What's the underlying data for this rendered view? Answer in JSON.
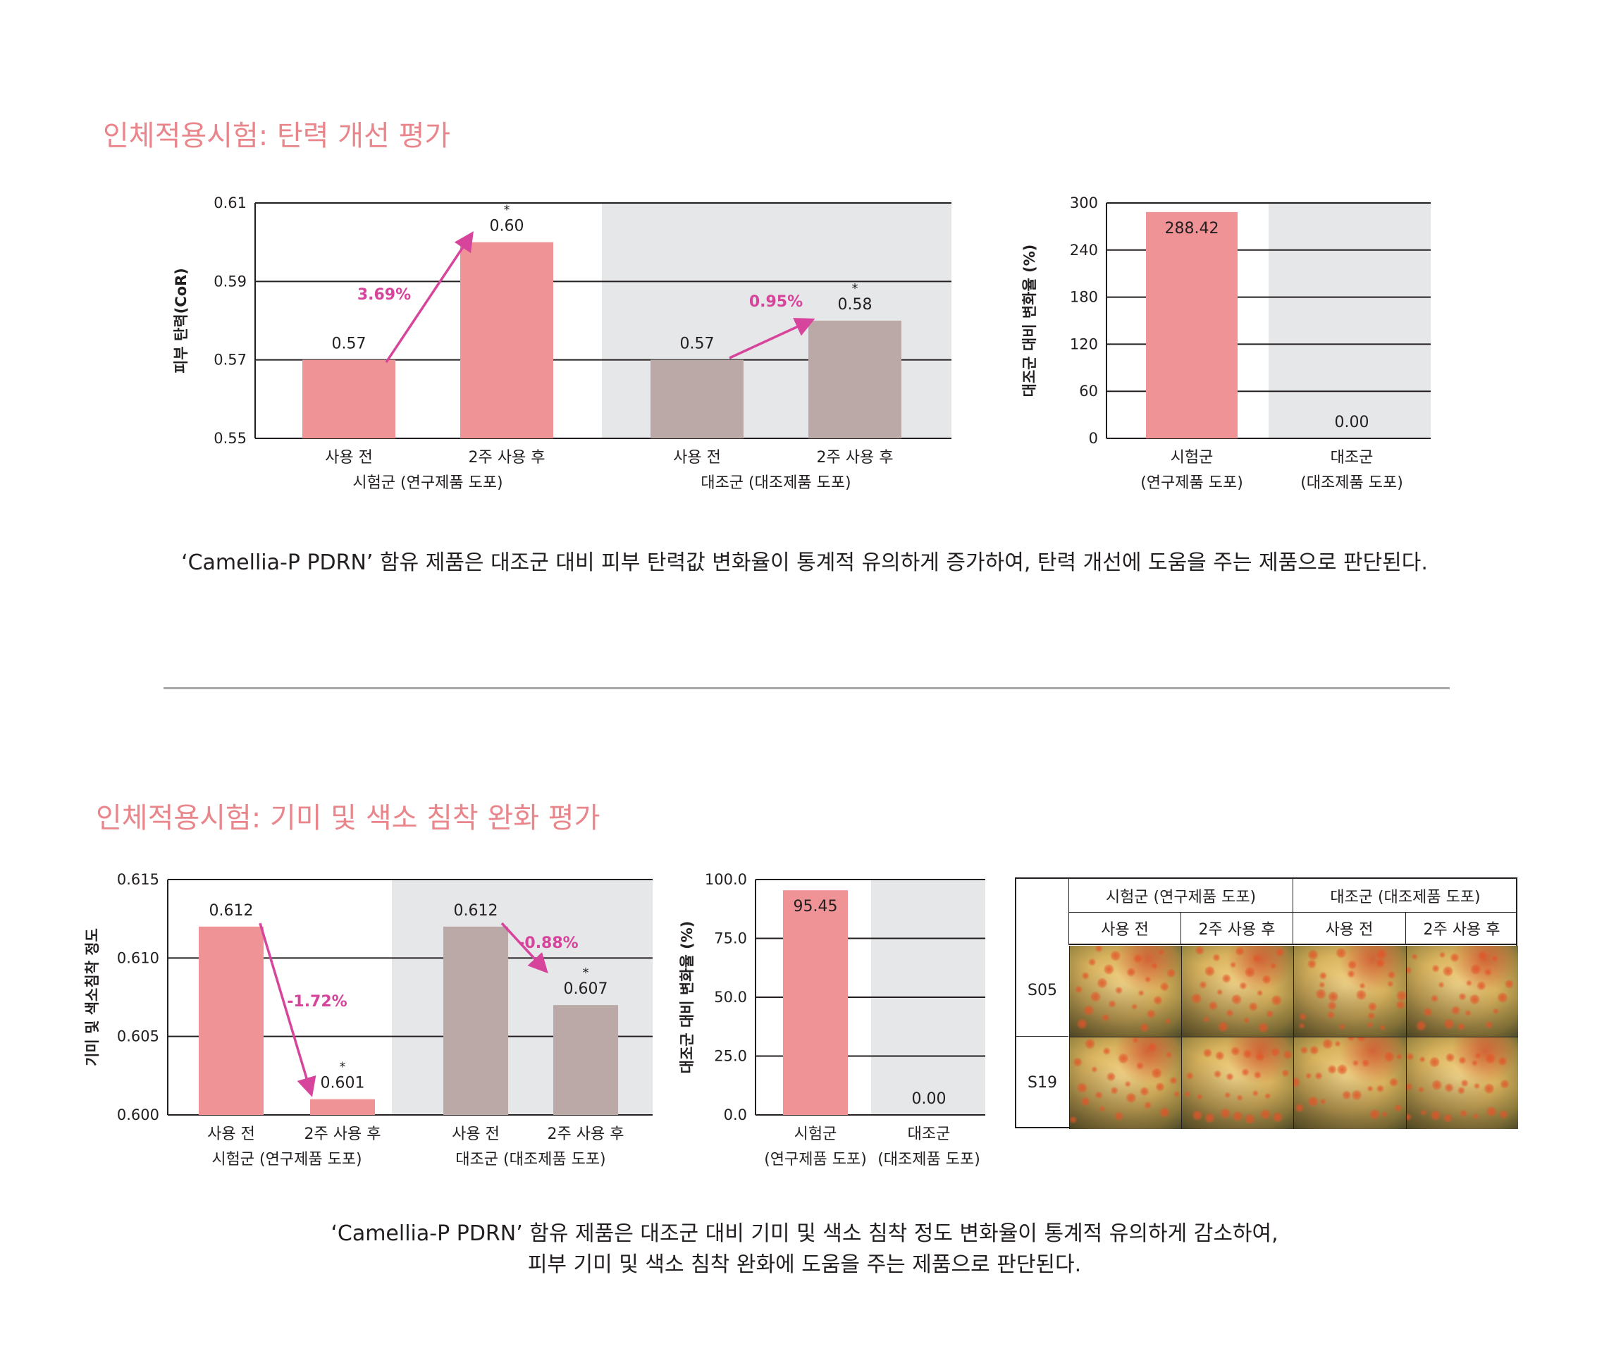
{
  "section1": {
    "title": "인체적용시험: 탄력 개선 평가",
    "caption": "‘Camellia-P PDRN’ 함유 제품은 대조군 대비 피부 탄력값 변화율이 통계적 유의하게 증가하여, 탄력 개선에 도움을 주는 제품으로 판단된다."
  },
  "section2": {
    "title": "인체적용시험: 기미 및 색소 침착 완화 평가",
    "caption_line1": "‘Camellia-P PDRN’ 함유 제품은 대조군 대비 기미 및 색소 침착 정도 변화율이 통계적 유의하게 감소하여,",
    "caption_line2": "피부 기미 및 색소 침착 완화에 도움을 주는 제품으로 판단된다."
  },
  "colors": {
    "test_bar": "#f09397",
    "control_bar": "#bba9a7",
    "arrow": "#d6449b",
    "shade": "#e6e7e8",
    "title": "#e8868b"
  },
  "chart_data": [
    {
      "id": "elasticity",
      "type": "bar",
      "ylabel": "피부 탄력(CoR)",
      "ylim": [
        0.55,
        0.61
      ],
      "yticks": [
        "0.61",
        "0.59",
        "0.57",
        "0.55"
      ],
      "ytick_values": [
        0.61,
        0.59,
        0.57,
        0.55
      ],
      "categories": [
        "사용 전",
        "2주 사용 후",
        "사용 전",
        "2주 사용 후"
      ],
      "groups": [
        "시험군 (연구제품 도포)",
        "대조군 (대조제품 도포)"
      ],
      "values": [
        0.57,
        0.6,
        0.57,
        0.58
      ],
      "labels": [
        "0.57",
        "0.60",
        "0.57",
        "0.58"
      ],
      "significant": [
        false,
        true,
        false,
        true
      ],
      "changes": [
        "3.69%",
        "0.95%"
      ],
      "grid": true,
      "shaded_group": 1
    },
    {
      "id": "elasticity-rate",
      "type": "bar",
      "ylabel": "대조군 대비 변화율 (%)",
      "ylim": [
        0,
        300
      ],
      "yticks": [
        "300",
        "240",
        "180",
        "120",
        "60",
        "0"
      ],
      "ytick_values": [
        300,
        240,
        180,
        120,
        60,
        0
      ],
      "categories": [
        "시험군\n(연구제품 도포)",
        "대조군\n(대조제품 도포)"
      ],
      "values": [
        288.42,
        0.0
      ],
      "labels": [
        "288.42",
        "0.00"
      ],
      "grid": true
    },
    {
      "id": "pigment",
      "type": "bar",
      "ylabel": "기미 및 색소침착 정도",
      "ylim": [
        0.6,
        0.615
      ],
      "yticks": [
        "0.615",
        "0.610",
        "0.605",
        "0.600"
      ],
      "ytick_values": [
        0.615,
        0.61,
        0.605,
        0.6
      ],
      "categories": [
        "사용 전",
        "2주 사용 후",
        "사용 전",
        "2주 사용 후"
      ],
      "groups": [
        "시험군 (연구제품 도포)",
        "대조군 (대조제품 도포)"
      ],
      "values": [
        0.612,
        0.601,
        0.612,
        0.607
      ],
      "labels": [
        "0.612",
        "0.601",
        "0.612",
        "0.607"
      ],
      "significant": [
        false,
        true,
        false,
        true
      ],
      "changes": [
        "-1.72%",
        "-0.88%"
      ],
      "grid": true,
      "shaded_group": 1
    },
    {
      "id": "pigment-rate",
      "type": "bar",
      "ylabel": "대조군 대비 변화율 (%)",
      "ylim": [
        0,
        100
      ],
      "yticks": [
        "100.0",
        "75.0",
        "50.0",
        "25.0",
        "0.0"
      ],
      "ytick_values": [
        100,
        75,
        50,
        25,
        0
      ],
      "categories": [
        "시험군\n(연구제품 도포)",
        "대조군\n(대조제품 도포)"
      ],
      "values": [
        95.45,
        0.0
      ],
      "labels": [
        "95.45",
        "0.00"
      ],
      "grid": true
    }
  ],
  "photo_table": {
    "group_headers": [
      "시험군 (연구제품 도포)",
      "대조군 (대조제품 도포)"
    ],
    "col_headers": [
      "사용 전",
      "2주 사용 후",
      "사용 전",
      "2주 사용 후"
    ],
    "rows": [
      "S05",
      "S19"
    ]
  },
  "significance_mark": "*"
}
